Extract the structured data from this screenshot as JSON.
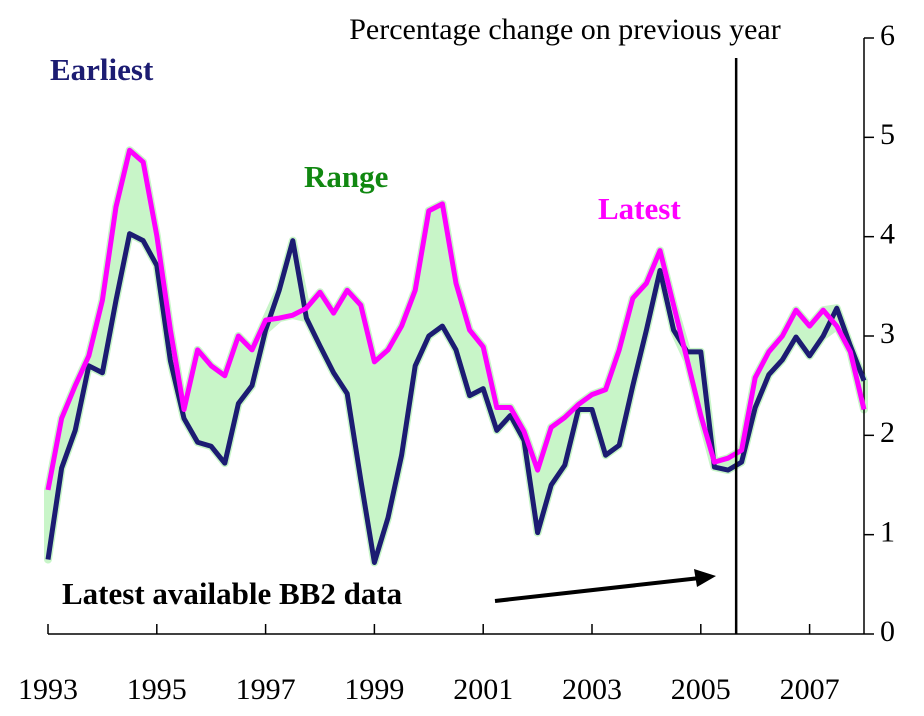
{
  "chart_data": {
    "type": "line",
    "title": "Percentage change on previous year",
    "x": [
      1993,
      1993.25,
      1993.5,
      1993.75,
      1994,
      1994.25,
      1994.5,
      1994.75,
      1995,
      1995.25,
      1995.5,
      1995.75,
      1996,
      1996.25,
      1996.5,
      1996.75,
      1997,
      1997.25,
      1997.5,
      1997.75,
      1998,
      1998.25,
      1998.5,
      1998.75,
      1999,
      1999.25,
      1999.5,
      1999.75,
      2000,
      2000.25,
      2000.5,
      2000.75,
      2001,
      2001.25,
      2001.5,
      2001.75,
      2002,
      2002.25,
      2002.5,
      2002.75,
      2003,
      2003.25,
      2003.5,
      2003.75,
      2004,
      2004.25,
      2004.5,
      2004.75,
      2005,
      2005.25,
      2005.5,
      2005.75,
      2006,
      2006.25,
      2006.5,
      2006.75,
      2007,
      2007.25,
      2007.5,
      2007.75,
      2008
    ],
    "series": [
      {
        "name": "Earliest",
        "color": "#1c1c72",
        "values": [
          0.75,
          1.67,
          2.05,
          2.7,
          2.63,
          3.36,
          4.03,
          3.96,
          3.71,
          2.75,
          2.17,
          1.93,
          1.89,
          1.72,
          2.32,
          2.5,
          3.06,
          3.46,
          3.96,
          3.18,
          2.9,
          2.63,
          2.42,
          1.55,
          0.72,
          1.17,
          1.8,
          2.7,
          3.0,
          3.1,
          2.86,
          2.4,
          2.47,
          2.05,
          2.2,
          1.95,
          1.02,
          1.5,
          1.7,
          2.26,
          2.26,
          1.8,
          1.9,
          2.5,
          3.06,
          3.66,
          3.06,
          2.84,
          2.84,
          1.68,
          1.65,
          1.73,
          2.28,
          2.61,
          2.76,
          2.99,
          2.8,
          3.0,
          3.28,
          2.9,
          2.55
        ]
      },
      {
        "name": "Latest",
        "color": "#ff00ff",
        "values": [
          1.45,
          2.17,
          2.5,
          2.8,
          3.36,
          4.3,
          4.87,
          4.75,
          4.01,
          3.06,
          2.26,
          2.86,
          2.7,
          2.6,
          3.0,
          2.86,
          3.16,
          3.18,
          3.21,
          3.28,
          3.44,
          3.23,
          3.46,
          3.31,
          2.74,
          2.86,
          3.1,
          3.46,
          4.26,
          4.33,
          3.53,
          3.06,
          2.89,
          2.28,
          2.28,
          2.04,
          1.65,
          2.08,
          2.18,
          2.31,
          2.41,
          2.46,
          2.86,
          3.38,
          3.53,
          3.86,
          3.31,
          2.76,
          2.2,
          1.73,
          1.77,
          1.85,
          2.58,
          2.84,
          3.0,
          3.26,
          3.1,
          3.26,
          3.1,
          2.84,
          2.26
        ]
      }
    ],
    "range_label": "Range",
    "range_color": "#c8f5c8",
    "annotation": "Latest available BB2 data",
    "marker_x": 2005.65,
    "xlim": [
      1993,
      2008
    ],
    "xticks": [
      1993,
      1995,
      1997,
      1999,
      2001,
      2003,
      2005,
      2007
    ],
    "ylim": [
      0,
      6
    ],
    "yticks": [
      0,
      1,
      2,
      3,
      4,
      5,
      6
    ]
  }
}
